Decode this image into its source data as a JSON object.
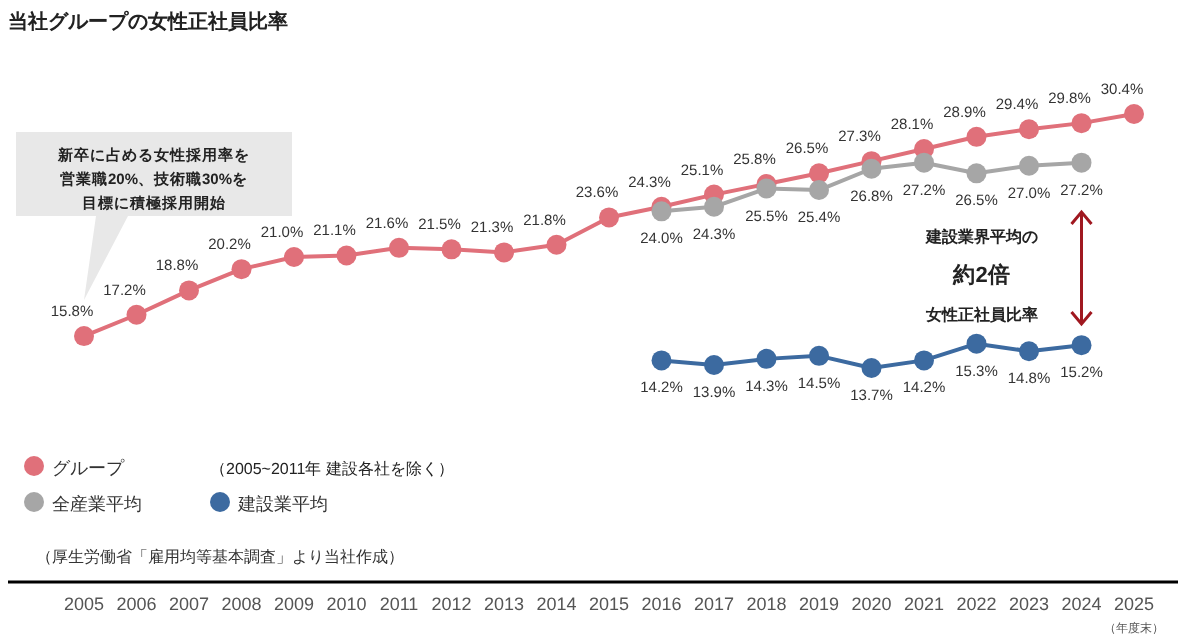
{
  "chart_data": {
    "type": "line",
    "title": "当社グループの女性正社員比率",
    "categories": [
      "2005",
      "2006",
      "2007",
      "2008",
      "2009",
      "2010",
      "2011",
      "2012",
      "2013",
      "2014",
      "2015",
      "2016",
      "2017",
      "2018",
      "2019",
      "2020",
      "2021",
      "2022",
      "2023",
      "2024",
      "2025"
    ],
    "series": [
      {
        "name": "グループ",
        "color": "#e0707a",
        "values": [
          15.8,
          17.2,
          18.8,
          20.2,
          21.0,
          21.1,
          21.6,
          21.5,
          21.3,
          21.8,
          23.6,
          24.3,
          25.1,
          25.8,
          26.5,
          27.3,
          28.1,
          28.9,
          29.4,
          29.8,
          30.4
        ],
        "value_labels": [
          "15.8%",
          "17.2%",
          "18.8%",
          "20.2%",
          "21.0%",
          "21.1%",
          "21.6%",
          "21.5%",
          "21.3%",
          "21.8%",
          "23.6%",
          "24.3%",
          "25.1%",
          "25.8%",
          "26.5%",
          "27.3%",
          "28.1%",
          "28.9%",
          "29.4%",
          "29.8%",
          "30.4%"
        ]
      },
      {
        "name": "全産業平均",
        "color": "#a6a6a6",
        "values": [
          null,
          null,
          null,
          null,
          null,
          null,
          null,
          null,
          null,
          null,
          null,
          24.0,
          24.3,
          25.5,
          25.4,
          26.8,
          27.2,
          26.5,
          27.0,
          27.2,
          null
        ],
        "value_labels": [
          null,
          null,
          null,
          null,
          null,
          null,
          null,
          null,
          null,
          null,
          null,
          "24.0%",
          "24.3%",
          "25.5%",
          "25.4%",
          "26.8%",
          "27.2%",
          "26.5%",
          "27.0%",
          "27.2%",
          null
        ]
      },
      {
        "name": "建設業平均",
        "color": "#3c6aa0",
        "values": [
          null,
          null,
          null,
          null,
          null,
          null,
          null,
          null,
          null,
          null,
          null,
          14.2,
          13.9,
          14.3,
          14.5,
          13.7,
          14.2,
          15.3,
          14.8,
          15.2,
          null
        ],
        "value_labels": [
          null,
          null,
          null,
          null,
          null,
          null,
          null,
          null,
          null,
          null,
          null,
          "14.2%",
          "13.9%",
          "14.3%",
          "14.5%",
          "13.7%",
          "14.2%",
          "15.3%",
          "14.8%",
          "15.2%",
          null
        ]
      }
    ],
    "marker": "circle",
    "line_style": "solid",
    "legend": "bottom left",
    "annotations": [
      "新卒に占める女性採用率を",
      "営業職20%、技術職30%を",
      "目標に積極採用開始",
      "建設業界平均の",
      "約2倍",
      "女性正社員比率",
      "（2005~2011年 建設各社を除く）",
      "（厚生労働省「雇用均等基本調査」より当社作成）",
      "（年度末）"
    ]
  }
}
